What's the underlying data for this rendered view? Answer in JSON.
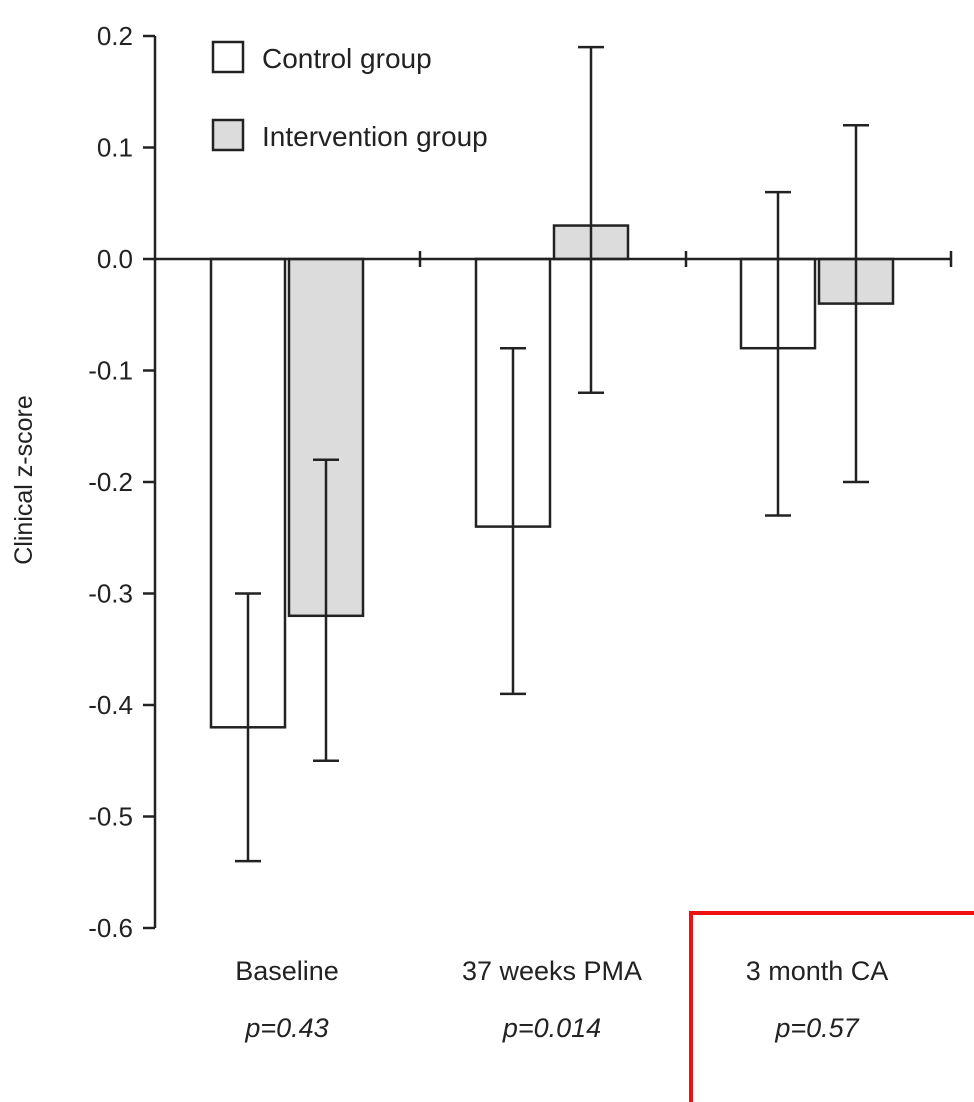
{
  "chart_data": {
    "type": "bar",
    "ylabel": "Clinical z-score",
    "ylim": [
      -0.6,
      0.2
    ],
    "yticks": [
      0.2,
      0.1,
      0.0,
      -0.1,
      -0.2,
      -0.3,
      -0.4,
      -0.5,
      -0.6
    ],
    "ytick_labels": [
      "0.2",
      "0.1",
      "0.0",
      "-0.1",
      "-0.2",
      "-0.3",
      "-0.4",
      "-0.5",
      "-0.6"
    ],
    "categories": [
      "Baseline",
      "37 weeks PMA",
      "3 month CA"
    ],
    "annotations": [
      "p=0.43",
      "p=0.014",
      "p=0.57"
    ],
    "legend_position": "top-left",
    "grid": false,
    "series": [
      {
        "name": "Control group",
        "color": "#ffffff",
        "values": [
          -0.42,
          -0.24,
          -0.08
        ],
        "error_low": [
          -0.54,
          -0.39,
          -0.23
        ],
        "error_high": [
          -0.3,
          -0.08,
          0.06
        ]
      },
      {
        "name": "Intervention group",
        "color": "#dcdcdc",
        "values": [
          -0.32,
          0.03,
          -0.04
        ],
        "error_low": [
          -0.45,
          -0.12,
          -0.2
        ],
        "error_high": [
          -0.18,
          0.19,
          0.12
        ]
      }
    ],
    "highlight_color": "#ee1111"
  }
}
